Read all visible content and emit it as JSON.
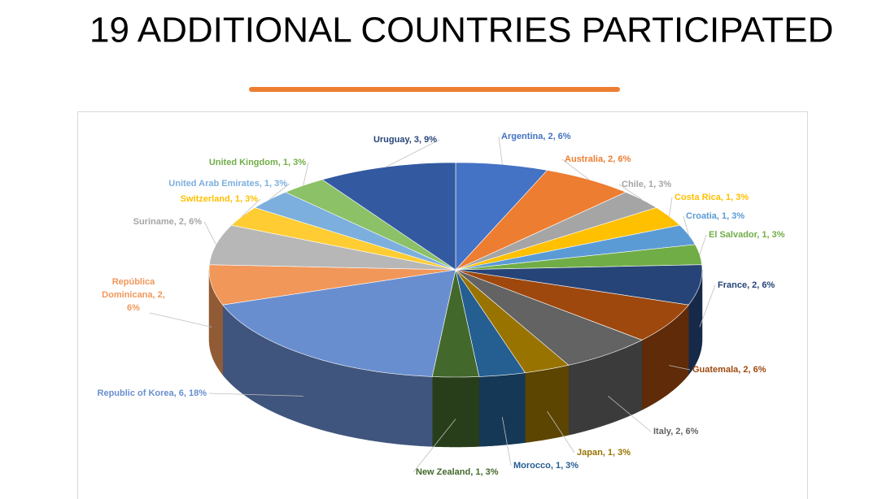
{
  "chart_data": {
    "type": "pie",
    "title": "19 ADDITIONAL COUNTRIES PARTICIPATED",
    "categories": [
      "Argentina",
      "Australia",
      "Chile",
      "Costa Rica",
      "Croatia",
      "El Salvador",
      "France",
      "Guatemala",
      "Italy",
      "Japan",
      "Morocco",
      "New Zealand",
      "Republic of Korea",
      "República Dominicana",
      "Suriname",
      "Switzerland",
      "United Arab Emirates",
      "United Kingdom",
      "Uruguay"
    ],
    "values": [
      2,
      2,
      1,
      1,
      1,
      1,
      2,
      2,
      2,
      1,
      1,
      1,
      6,
      2,
      2,
      1,
      1,
      1,
      3
    ],
    "value_labels": [
      "Argentina, 2, 6%",
      "Australia, 2, 6%",
      "Chile, 1, 3%",
      "Costa Rica, 1, 3%",
      "Croatia, 1, 3%",
      "El Salvador, 1, 3%",
      "France, 2, 6%",
      "Guatemala, 2, 6%",
      "Italy, 2, 6%",
      "Japan, 1, 3%",
      "Morocco, 1, 3%",
      "New Zealand, 1, 3%",
      "Republic of Korea, 6, 18%",
      "República Dominicana, 2, 6%",
      "Suriname, 2, 6%",
      "Switzerland, 1, 3%",
      "United Arab Emirates, 1, 3%",
      "United Kingdom, 1, 3%",
      "Uruguay, 3, 9%"
    ],
    "colors": [
      "#4472c4",
      "#ed7d31",
      "#a5a5a5",
      "#ffc000",
      "#5b9bd5",
      "#70ad47",
      "#264478",
      "#9e480e",
      "#636363",
      "#997300",
      "#255e91",
      "#43682b",
      "#698ed0",
      "#f1975a",
      "#b7b7b7",
      "#ffcd33",
      "#7cafdd",
      "#8cc168",
      "#335aa1"
    ]
  }
}
